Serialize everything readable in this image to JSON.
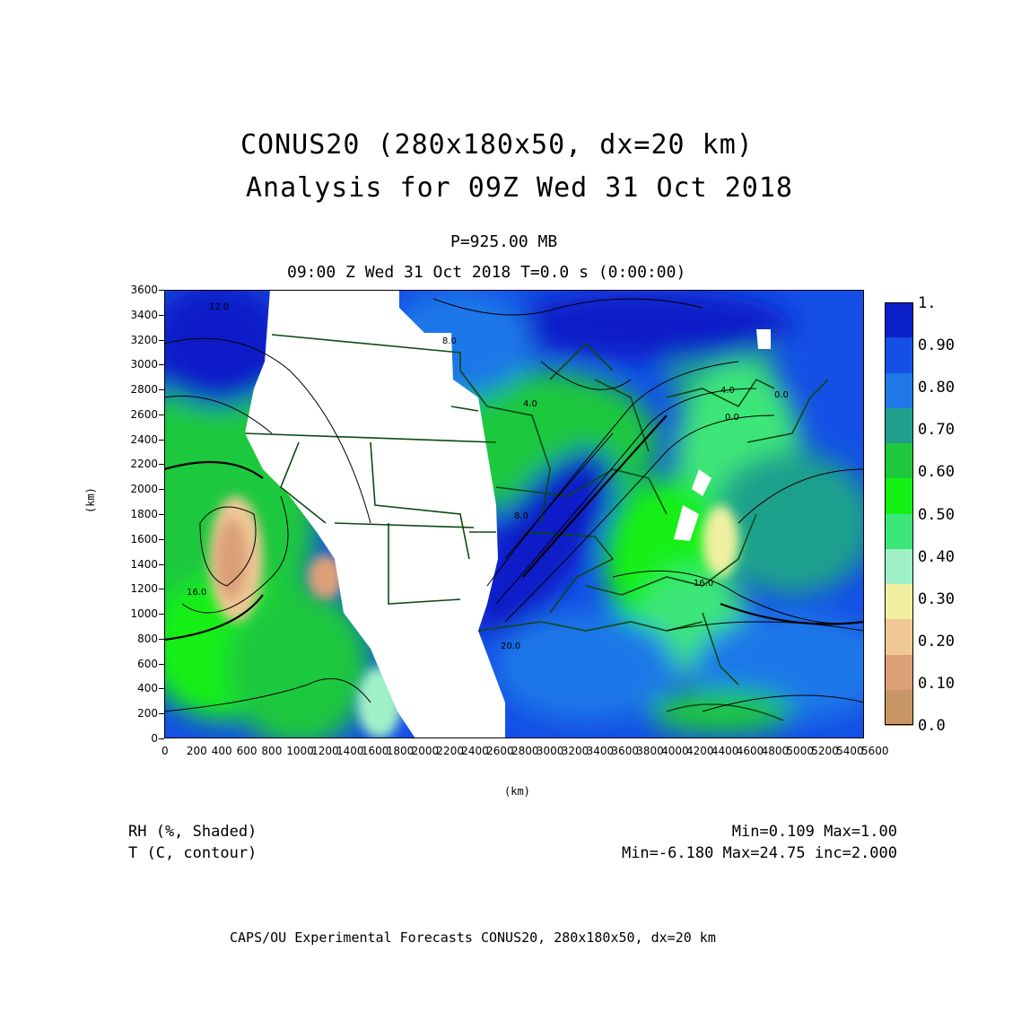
{
  "header": {
    "title_line1": "CONUS20 (280x180x50, dx=20 km)",
    "title_line2": "Analysis for 09Z Wed 31 Oct 2018",
    "level": "P=925.00 MB",
    "valid_time": "09:00 Z Wed 31 Oct 2018    T=0.0 s (0:00:00)"
  },
  "axes": {
    "y_label": "(km)",
    "x_label": "(km)",
    "y_ticks": [
      "0",
      "200",
      "400",
      "600",
      "800",
      "1000",
      "1200",
      "1400",
      "1600",
      "1800",
      "2000",
      "2200",
      "2400",
      "2600",
      "2800",
      "3000",
      "3200",
      "3400",
      "3600"
    ],
    "x_ticks": [
      "0",
      "200",
      "400",
      "600",
      "800",
      "1000",
      "1200",
      "1400",
      "1600",
      "1800",
      "2000",
      "2200",
      "2400",
      "2600",
      "2800",
      "3000",
      "3200",
      "3400",
      "3600",
      "3800",
      "4000",
      "4200",
      "4400",
      "4600",
      "4800",
      "5000",
      "5200",
      "5400",
      "5600"
    ]
  },
  "colorbar": {
    "labels": [
      "1.",
      "0.90",
      "0.80",
      "0.70",
      "0.60",
      "0.50",
      "0.40",
      "0.30",
      "0.20",
      "0.10",
      "0.0"
    ],
    "colors": [
      "#0a1fc8",
      "#1450e6",
      "#1f78e8",
      "#1ea08c",
      "#1ec83c",
      "#14f014",
      "#3ce678",
      "#a0f0c8",
      "#f0f0a0",
      "#f0c896",
      "#dca078",
      "#c89664"
    ]
  },
  "contour_labels": [
    "12.0",
    "16.0",
    "8.0",
    "4.0",
    "0.0",
    "8.0",
    "16.0",
    "20.0",
    "4.0",
    "0.0"
  ],
  "legend": {
    "field1": "RH (%, Shaded)",
    "field1_stats": "Min=0.109  Max=1.00",
    "field2": "T (C, contour)",
    "field2_stats": "Min=-6.180  Max=24.75  inc=2.000"
  },
  "footer": "CAPS/OU Experimental Forecasts  CONUS20, 280x180x50, dx=20 km"
}
